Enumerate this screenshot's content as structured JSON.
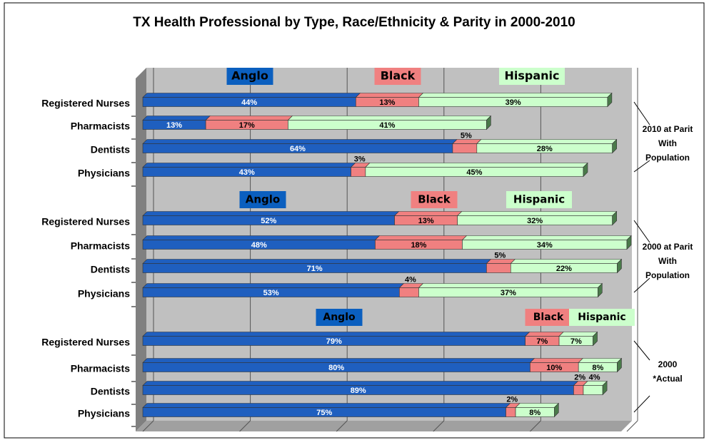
{
  "chart_data": [
    {
      "type": "bar",
      "title": "TX Health Professional by Type, Race/Ethnicity & Parity in 2000-2010",
      "annotation": "2010 at Parit With Population",
      "categories": [
        "Registered Nurses",
        "Pharmacists",
        "Dentists",
        "Physicians"
      ],
      "xlim": [
        0,
        100
      ],
      "xticks": [
        0,
        20,
        40,
        60,
        80,
        100
      ],
      "grid": true,
      "series": [
        {
          "name": "Anglo",
          "color": "#1f5fbf",
          "values": [
            44,
            13,
            64,
            43
          ],
          "value_labels": [
            "44%",
            "13%",
            "64%",
            "43%"
          ]
        },
        {
          "name": "Black",
          "color": "#f08080",
          "values": [
            13,
            17,
            5,
            3
          ],
          "value_labels": [
            "13%",
            "17%",
            "5%",
            "3%"
          ]
        },
        {
          "name": "Hispanic",
          "color": "#ccffcc",
          "values": [
            39,
            41,
            28,
            45
          ],
          "value_labels": [
            "39%",
            "41%",
            "28%",
            "45%"
          ]
        }
      ]
    },
    {
      "type": "bar",
      "annotation": "2000 at Parit With Population",
      "categories": [
        "Registered Nurses",
        "Pharmacists",
        "Dentists",
        "Physicians"
      ],
      "xlim": [
        0,
        100
      ],
      "xticks": [
        0,
        20,
        40,
        60,
        80,
        100
      ],
      "grid": true,
      "series": [
        {
          "name": "Anglo",
          "color": "#1f5fbf",
          "values": [
            52,
            48,
            71,
            53
          ],
          "value_labels": [
            "52%",
            "48%",
            "71%",
            "53%"
          ]
        },
        {
          "name": "Black",
          "color": "#f08080",
          "values": [
            13,
            18,
            5,
            4
          ],
          "value_labels": [
            "13%",
            "18%",
            "5%",
            "4%"
          ]
        },
        {
          "name": "Hispanic",
          "color": "#ccffcc",
          "values": [
            32,
            34,
            22,
            37
          ],
          "value_labels": [
            "32%",
            "34%",
            "22%",
            "37%"
          ]
        }
      ]
    },
    {
      "type": "bar",
      "annotation": "2000 *Actual",
      "categories": [
        "Registered Nurses",
        "Pharmacists",
        "Dentists",
        "Physicians"
      ],
      "xlim": [
        0,
        100
      ],
      "xticks": [
        0,
        20,
        40,
        60,
        80,
        100
      ],
      "grid": true,
      "series": [
        {
          "name": "Anglo",
          "color": "#1f5fbf",
          "values": [
            79,
            80,
            89,
            75
          ],
          "value_labels": [
            "79%",
            "80%",
            "89%",
            "75%"
          ]
        },
        {
          "name": "Black",
          "color": "#f08080",
          "values": [
            7,
            10,
            2,
            2
          ],
          "value_labels": [
            "7%",
            "10%",
            "2%",
            "2%"
          ]
        },
        {
          "name": "Hispanic",
          "color": "#ccffcc",
          "values": [
            7,
            8,
            4,
            8
          ],
          "value_labels": [
            "7%",
            "8%",
            "4%",
            "8%"
          ]
        }
      ]
    }
  ]
}
